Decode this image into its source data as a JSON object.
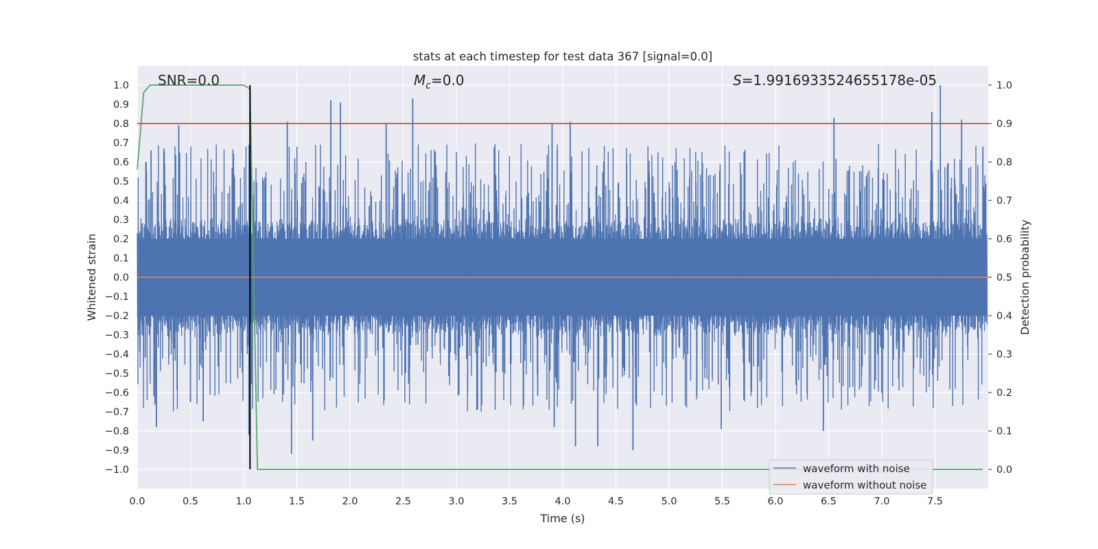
{
  "chart_data": {
    "type": "line",
    "title": "stats at each timestep for test data 367 [signal=0.0]",
    "xlabel": "Time (s)",
    "ylabel": "Whitened strain",
    "y2label": "Detection probability",
    "xlim": [
      0.0,
      8.0
    ],
    "ylim": [
      -1.1,
      1.1
    ],
    "y2lim": [
      -0.05,
      1.05
    ],
    "xticks": [
      0.0,
      0.5,
      1.0,
      1.5,
      2.0,
      2.5,
      3.0,
      3.5,
      4.0,
      4.5,
      5.0,
      5.5,
      6.0,
      6.5,
      7.0,
      7.5
    ],
    "yticks": [
      -1.0,
      -0.9,
      -0.8,
      -0.7,
      -0.6,
      -0.5,
      -0.4,
      -0.3,
      -0.2,
      -0.1,
      0.0,
      0.1,
      0.2,
      0.3,
      0.4,
      0.5,
      0.6,
      0.7,
      0.8,
      0.9,
      1.0
    ],
    "y2ticks": [
      0.0,
      0.1,
      0.2,
      0.3,
      0.4,
      0.5,
      0.6,
      0.7,
      0.8,
      0.9,
      1.0
    ],
    "grid": true,
    "legend_position": "lower-right",
    "annotations": {
      "snr": "SNR=0.0",
      "mc_symbol": "M",
      "mc_sub": "c",
      "mc_value": "=0.0",
      "s_symbol": "S",
      "s_value": "=1.9916933524655178e-05"
    },
    "series": [
      {
        "name": "waveform with noise",
        "color": "#4c72b0",
        "axis": "left",
        "description": "dense whitened noise, roughly -1.0 to 1.0",
        "peak_events": [
          {
            "x": 0.13,
            "y": 0.66
          },
          {
            "x": 0.18,
            "y": -0.78
          },
          {
            "x": 0.25,
            "y": 0.67
          },
          {
            "x": 0.39,
            "y": 0.79
          },
          {
            "x": 0.5,
            "y": -0.65
          },
          {
            "x": 0.62,
            "y": -0.75
          },
          {
            "x": 1.05,
            "y": -0.82
          },
          {
            "x": 1.41,
            "y": 0.81
          },
          {
            "x": 1.45,
            "y": -0.92
          },
          {
            "x": 1.65,
            "y": -0.85
          },
          {
            "x": 1.82,
            "y": 0.92
          },
          {
            "x": 1.91,
            "y": 0.91
          },
          {
            "x": 2.34,
            "y": 0.8
          },
          {
            "x": 2.59,
            "y": 0.93
          },
          {
            "x": 3.9,
            "y": 0.8
          },
          {
            "x": 3.92,
            "y": -0.78
          },
          {
            "x": 4.07,
            "y": 0.81
          },
          {
            "x": 4.12,
            "y": -0.88
          },
          {
            "x": 4.33,
            "y": -0.88
          },
          {
            "x": 4.66,
            "y": -0.9
          },
          {
            "x": 5.49,
            "y": -0.79
          },
          {
            "x": 6.45,
            "y": -0.8
          },
          {
            "x": 6.55,
            "y": 0.83
          },
          {
            "x": 7.47,
            "y": 0.86
          },
          {
            "x": 7.55,
            "y": 1.0
          },
          {
            "x": 7.75,
            "y": 0.82
          },
          {
            "x": 7.95,
            "y": 0.68
          }
        ]
      },
      {
        "name": "waveform without noise",
        "color": "#dd8452",
        "axis": "left",
        "x": [
          0.0,
          8.0
        ],
        "y": [
          0.0,
          0.0
        ]
      },
      {
        "name": "detection probability",
        "color": "#55a868",
        "axis": "right",
        "in_legend": false,
        "x": [
          0.0,
          0.06,
          0.12,
          1.0,
          1.06,
          1.13,
          7.95
        ],
        "y": [
          0.78,
          0.98,
          1.0,
          1.0,
          0.99,
          0.0,
          0.0
        ]
      },
      {
        "name": "threshold",
        "color": "#c44e52",
        "axis": "right",
        "in_legend": false,
        "x": [
          0.0,
          8.0
        ],
        "y": [
          0.9,
          0.9
        ]
      },
      {
        "name": "detection time",
        "color": "#000000",
        "axis": "right",
        "in_legend": false,
        "x": [
          1.06,
          1.06
        ],
        "y": [
          0.0,
          1.0
        ]
      }
    ],
    "legend": [
      "waveform with noise",
      "waveform without noise"
    ]
  }
}
